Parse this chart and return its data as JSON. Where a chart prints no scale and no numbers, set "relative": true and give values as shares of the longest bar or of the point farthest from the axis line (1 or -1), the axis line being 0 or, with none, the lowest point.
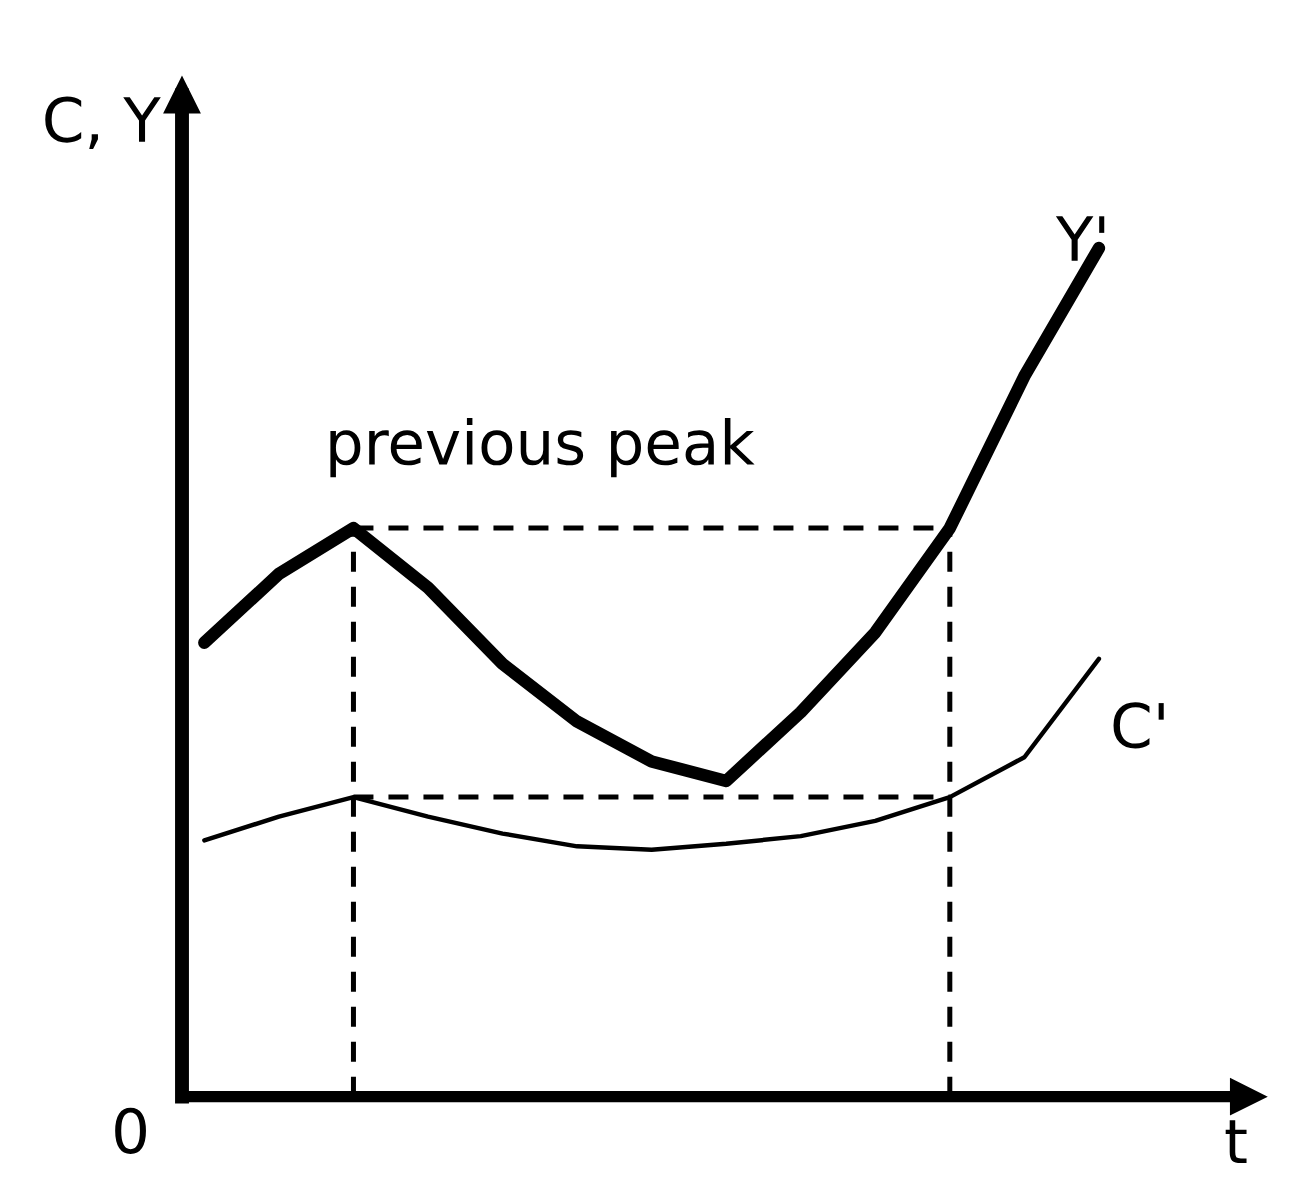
{
  "chart_data": {
    "type": "line",
    "relative": true,
    "xlabel": "t",
    "ylabel": "C, Y",
    "categories": [
      null,
      null,
      null,
      null,
      null,
      null,
      null,
      null,
      null,
      null,
      null,
      null,
      null
    ],
    "series": [
      {
        "name": "Y'",
        "color": "#000000",
        "values": [
          0.535,
          0.616,
          0.67,
          0.6,
          0.51,
          0.442,
          0.395,
          0.372,
          0.453,
          0.547,
          0.67,
          0.849,
          1.0
        ]
      },
      {
        "name": "C'",
        "color": "#000000",
        "values": [
          0.302,
          0.33,
          0.353,
          0.33,
          0.31,
          0.295,
          0.291,
          0.298,
          0.307,
          0.325,
          0.353,
          0.4,
          0.516
        ]
      },
      {
        "color": "#000000",
        "line_style": "dashed",
        "values": [
          null,
          null,
          0.67,
          0.67,
          0.67,
          0.67,
          0.67,
          0.67,
          0.67,
          0.67,
          0.67,
          null,
          null
        ]
      },
      {
        "color": "#000000",
        "line_style": "dashed",
        "values": [
          null,
          null,
          0.353,
          0.353,
          0.353,
          0.353,
          0.353,
          0.353,
          0.353,
          0.353,
          0.353,
          null,
          null
        ]
      }
    ],
    "annotations": [
      "0",
      "previous peak"
    ],
    "legend": false,
    "marker": "none"
  }
}
